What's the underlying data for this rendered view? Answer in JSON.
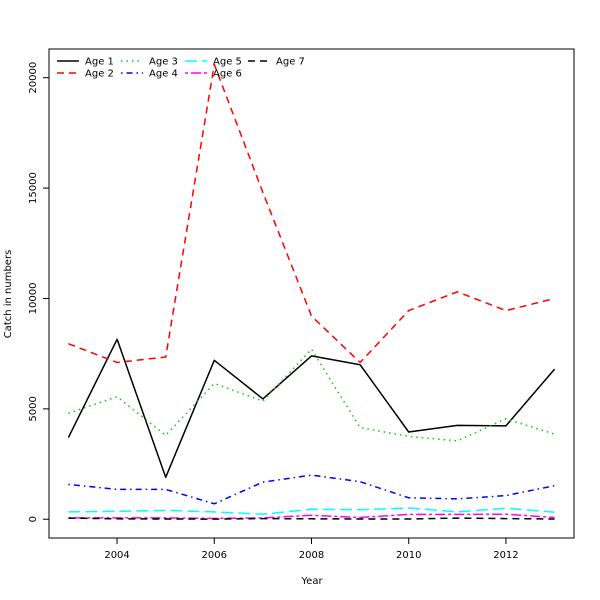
{
  "chart_data": {
    "type": "line",
    "title": "",
    "xlabel": "Year",
    "ylabel": "Catch in numbers",
    "x": [
      2003,
      2004,
      2005,
      2006,
      2007,
      2008,
      2009,
      2010,
      2011,
      2012,
      2013
    ],
    "xlim": [
      2002.6,
      2013.4
    ],
    "ylim": [
      -850,
      21300
    ],
    "x_ticks": [
      2004,
      2006,
      2008,
      2010,
      2012
    ],
    "y_ticks": [
      0,
      5000,
      10000,
      15000,
      20000
    ],
    "grid": false,
    "legend_position": "top-left",
    "series": [
      {
        "name": "Age 1",
        "color": "#000000",
        "dash": "solid",
        "values": [
          3700,
          8150,
          1900,
          7200,
          5450,
          7400,
          7000,
          3950,
          4250,
          4230,
          6800
        ]
      },
      {
        "name": "Age 2",
        "color": "#ff0000",
        "dash": "dashed",
        "values": [
          7950,
          7100,
          7350,
          20600,
          14800,
          9200,
          7100,
          9450,
          10300,
          9450,
          10000
        ]
      },
      {
        "name": "Age 3",
        "color": "#00cd00",
        "dash": "dotted",
        "values": [
          4800,
          5550,
          3800,
          6150,
          5350,
          7700,
          4150,
          3750,
          3550,
          4550,
          3850
        ]
      },
      {
        "name": "Age 4",
        "color": "#0000ff",
        "dash": "dotdash",
        "values": [
          1580,
          1350,
          1350,
          700,
          1680,
          2000,
          1700,
          970,
          920,
          1070,
          1520
        ]
      },
      {
        "name": "Age 5",
        "color": "#00ffff",
        "dash": "longdash",
        "values": [
          330,
          360,
          400,
          330,
          230,
          450,
          430,
          510,
          330,
          500,
          320
        ]
      },
      {
        "name": "Age 6",
        "color": "#ff00ff",
        "dash": "twodash",
        "values": [
          60,
          60,
          60,
          40,
          60,
          180,
          80,
          220,
          220,
          230,
          80
        ]
      },
      {
        "name": "Age 7",
        "color": "#000000",
        "dash": "dashed",
        "values": [
          50,
          20,
          10,
          5,
          30,
          20,
          10,
          10,
          50,
          30,
          10
        ]
      }
    ]
  }
}
